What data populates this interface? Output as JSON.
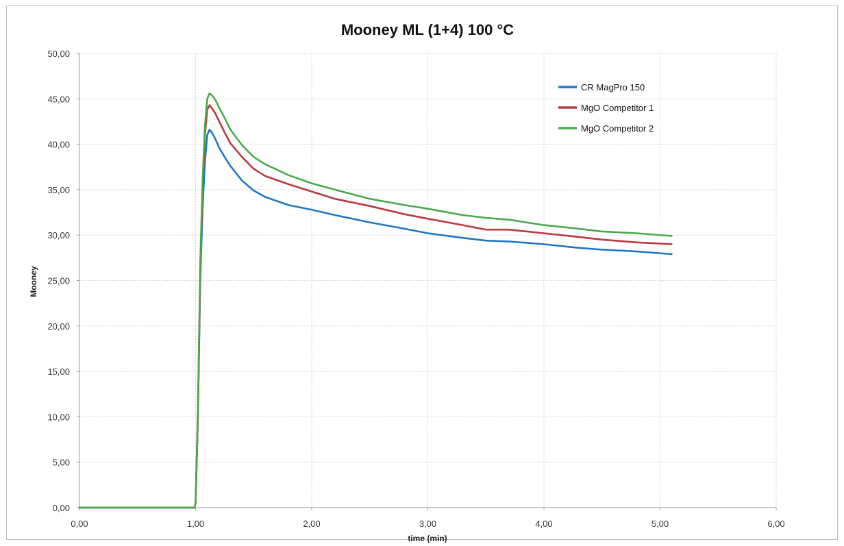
{
  "chart_data": {
    "type": "line",
    "title": "Mooney ML (1+4) 100 °C",
    "xlabel": "time (min)",
    "ylabel": "Mooney",
    "xlim": [
      0,
      6
    ],
    "ylim": [
      0,
      50
    ],
    "x_ticks": [
      0,
      1,
      2,
      3,
      4,
      5,
      6
    ],
    "x_tick_labels": [
      "0,00",
      "1,00",
      "2,00",
      "3,00",
      "4,00",
      "5,00",
      "6,00"
    ],
    "y_ticks": [
      0,
      5,
      10,
      15,
      20,
      25,
      30,
      35,
      40,
      45,
      50
    ],
    "y_tick_labels": [
      "0,00",
      "5,00",
      "10,00",
      "15,00",
      "20,00",
      "25,00",
      "30,00",
      "35,00",
      "40,00",
      "45,00",
      "50,00"
    ],
    "grid": true,
    "legend_position": "top-right",
    "series": [
      {
        "name": "CR MagPro 150",
        "color": "#1f77c4",
        "x": [
          0,
          0.99,
          1.0,
          1.02,
          1.04,
          1.06,
          1.08,
          1.1,
          1.12,
          1.14,
          1.17,
          1.2,
          1.25,
          1.3,
          1.4,
          1.5,
          1.6,
          1.8,
          2.0,
          2.2,
          2.5,
          2.8,
          3.0,
          3.3,
          3.5,
          3.7,
          4.0,
          4.3,
          4.5,
          4.8,
          5.1
        ],
        "y": [
          0,
          0,
          0.5,
          10,
          25,
          33,
          38,
          41,
          41.6,
          41.3,
          40.6,
          39.7,
          38.6,
          37.6,
          36,
          34.9,
          34.2,
          33.3,
          32.8,
          32.2,
          31.4,
          30.7,
          30.2,
          29.7,
          29.4,
          29.3,
          29,
          28.6,
          28.4,
          28.2,
          27.9
        ]
      },
      {
        "name": "MgO Competitor 1",
        "color": "#b9393f",
        "x": [
          0,
          0.99,
          1.0,
          1.02,
          1.04,
          1.06,
          1.08,
          1.1,
          1.12,
          1.14,
          1.17,
          1.2,
          1.25,
          1.3,
          1.4,
          1.5,
          1.6,
          1.8,
          2.0,
          2.2,
          2.5,
          2.8,
          3.0,
          3.3,
          3.5,
          3.7,
          4.0,
          4.3,
          4.5,
          4.8,
          5.1
        ],
        "y": [
          0,
          0,
          0.5,
          10,
          26,
          35,
          41,
          43.8,
          44.3,
          44,
          43.4,
          42.6,
          41.3,
          40.1,
          38.6,
          37.3,
          36.5,
          35.6,
          34.8,
          34,
          33.2,
          32.3,
          31.8,
          31.1,
          30.6,
          30.6,
          30.2,
          29.8,
          29.5,
          29.2,
          29
        ]
      },
      {
        "name": "MgO Competitor 2",
        "color": "#4aaa4a",
        "x": [
          0,
          0.99,
          1.0,
          1.02,
          1.04,
          1.06,
          1.08,
          1.1,
          1.12,
          1.14,
          1.17,
          1.2,
          1.25,
          1.3,
          1.4,
          1.5,
          1.6,
          1.8,
          2.0,
          2.2,
          2.5,
          2.8,
          3.0,
          3.3,
          3.5,
          3.7,
          4.0,
          4.3,
          4.5,
          4.8,
          5.1
        ],
        "y": [
          0,
          0,
          0.5,
          11,
          27,
          36,
          42,
          45,
          45.6,
          45.4,
          44.9,
          44.1,
          42.9,
          41.6,
          39.9,
          38.6,
          37.8,
          36.6,
          35.7,
          35,
          34,
          33.3,
          32.9,
          32.2,
          31.9,
          31.7,
          31.1,
          30.7,
          30.4,
          30.2,
          29.9
        ]
      }
    ]
  }
}
